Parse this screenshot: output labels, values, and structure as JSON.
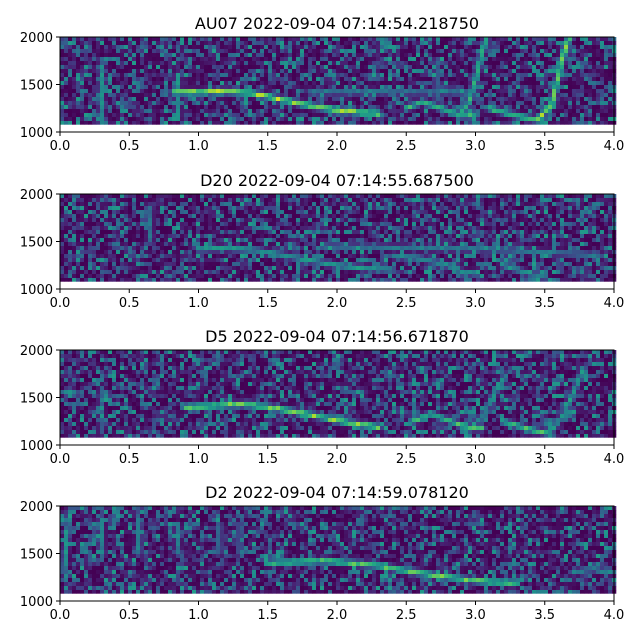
{
  "colors": {
    "background": "#440154",
    "ridge": "#fde725",
    "mid": "#21918c"
  },
  "chart_data": [
    {
      "type": "heatmap",
      "title": "AU07 2022-09-04 07:14:54.218750",
      "xlim": [
        0.0,
        4.0
      ],
      "ylim": [
        1000,
        2000
      ],
      "xticks": [
        "0.0",
        "0.5",
        "1.0",
        "1.5",
        "2.0",
        "2.5",
        "3.0",
        "3.5",
        "4.0"
      ],
      "yticks": [
        "1000",
        "1500",
        "2000"
      ],
      "grid": false,
      "data_band": [
        1080,
        2000
      ],
      "contours": [
        {
          "strength": 0.95,
          "points": [
            [
              0.82,
              1420
            ],
            [
              1.0,
              1420
            ],
            [
              1.2,
              1430
            ],
            [
              1.4,
              1405
            ],
            [
              1.6,
              1340
            ],
            [
              1.8,
              1280
            ],
            [
              2.0,
              1230
            ],
            [
              2.2,
              1200
            ],
            [
              2.3,
              1195
            ]
          ]
        },
        {
          "strength": 0.45,
          "points": [
            [
              1.8,
              1420
            ],
            [
              2.2,
              1420
            ],
            [
              2.5,
              1420
            ],
            [
              2.8,
              1420
            ],
            [
              3.0,
              1410
            ]
          ]
        },
        {
          "strength": 0.75,
          "points": [
            [
              2.5,
              1250
            ],
            [
              2.62,
              1320
            ],
            [
              2.75,
              1250
            ],
            [
              2.9,
              1170
            ],
            [
              3.0,
              1170
            ]
          ]
        },
        {
          "strength": 0.7,
          "points": [
            [
              2.88,
              1160
            ],
            [
              2.95,
              1300
            ],
            [
              3.0,
              1550
            ],
            [
              3.05,
              1850
            ],
            [
              3.08,
              2000
            ]
          ]
        },
        {
          "strength": 0.8,
          "points": [
            [
              3.1,
              1250
            ],
            [
              3.3,
              1170
            ],
            [
              3.5,
              1110
            ]
          ]
        },
        {
          "strength": 0.9,
          "points": [
            [
              3.45,
              1130
            ],
            [
              3.55,
              1300
            ],
            [
              3.6,
              1600
            ],
            [
              3.65,
              1900
            ],
            [
              3.68,
              2000
            ]
          ]
        },
        {
          "strength": 0.55,
          "points": [
            [
              0.3,
              1150
            ],
            [
              0.3,
              1700
            ]
          ]
        },
        {
          "strength": 0.55,
          "points": [
            [
              0.85,
              1150
            ],
            [
              0.85,
              1600
            ]
          ]
        },
        {
          "strength": 0.4,
          "points": [
            [
              2.72,
              1350
            ],
            [
              2.72,
              1750
            ]
          ]
        }
      ]
    },
    {
      "type": "heatmap",
      "title": "D20 2022-09-04 07:14:55.687500",
      "xlim": [
        0.0,
        4.0
      ],
      "ylim": [
        1000,
        2000
      ],
      "xticks": [
        "0.0",
        "0.5",
        "1.0",
        "1.5",
        "2.0",
        "2.5",
        "3.0",
        "3.5",
        "4.0"
      ],
      "yticks": [
        "1000",
        "1500",
        "2000"
      ],
      "grid": false,
      "data_band": [
        1080,
        2000
      ],
      "contours": [
        {
          "strength": 0.6,
          "points": [
            [
              1.0,
              1420
            ],
            [
              1.2,
              1430
            ],
            [
              1.4,
              1410
            ],
            [
              1.6,
              1360
            ],
            [
              1.8,
              1300
            ],
            [
              2.0,
              1250
            ],
            [
              2.2,
              1220
            ],
            [
              2.4,
              1200
            ]
          ]
        },
        {
          "strength": 0.55,
          "points": [
            [
              2.4,
              1350
            ],
            [
              2.6,
              1320
            ],
            [
              2.8,
              1250
            ],
            [
              2.9,
              1180
            ],
            [
              3.0,
              1160
            ]
          ]
        },
        {
          "strength": 0.55,
          "points": [
            [
              3.2,
              1250
            ],
            [
              3.35,
              1180
            ],
            [
              3.5,
              1120
            ]
          ]
        },
        {
          "strength": 0.45,
          "points": [
            [
              1.9,
              1450
            ],
            [
              2.3,
              1440
            ],
            [
              2.7,
              1430
            ],
            [
              3.1,
              1420
            ],
            [
              3.6,
              1380
            ],
            [
              3.9,
              1350
            ]
          ]
        },
        {
          "strength": 0.4,
          "points": [
            [
              0.65,
              1500
            ],
            [
              0.65,
              1850
            ]
          ]
        }
      ]
    },
    {
      "type": "heatmap",
      "title": "D5 2022-09-04 07:14:56.671870",
      "xlim": [
        0.0,
        4.0
      ],
      "ylim": [
        1000,
        2000
      ],
      "xticks": [
        "0.0",
        "0.5",
        "1.0",
        "1.5",
        "2.0",
        "2.5",
        "3.0",
        "3.5",
        "4.0"
      ],
      "yticks": [
        "1000",
        "1500",
        "2000"
      ],
      "grid": false,
      "data_band": [
        1080,
        2000
      ],
      "contours": [
        {
          "strength": 0.9,
          "points": [
            [
              0.9,
              1400
            ],
            [
              1.1,
              1410
            ],
            [
              1.3,
              1430
            ],
            [
              1.5,
              1400
            ],
            [
              1.7,
              1350
            ],
            [
              1.9,
              1290
            ],
            [
              2.1,
              1230
            ],
            [
              2.3,
              1190
            ]
          ]
        },
        {
          "strength": 0.75,
          "points": [
            [
              2.55,
              1250
            ],
            [
              2.68,
              1330
            ],
            [
              2.8,
              1260
            ],
            [
              2.95,
              1180
            ],
            [
              3.05,
              1180
            ]
          ]
        },
        {
          "strength": 0.55,
          "points": [
            [
              2.95,
              1170
            ],
            [
              3.05,
              1300
            ],
            [
              3.12,
              1500
            ],
            [
              3.2,
              1700
            ]
          ]
        },
        {
          "strength": 0.75,
          "points": [
            [
              3.2,
              1250
            ],
            [
              3.4,
              1160
            ],
            [
              3.55,
              1110
            ]
          ]
        },
        {
          "strength": 0.6,
          "points": [
            [
              3.55,
              1150
            ],
            [
              3.65,
              1350
            ],
            [
              3.72,
              1600
            ],
            [
              3.78,
              1800
            ]
          ]
        },
        {
          "strength": 0.35,
          "points": [
            [
              0.3,
              1150
            ],
            [
              0.3,
              1600
            ]
          ]
        }
      ]
    },
    {
      "type": "heatmap",
      "title": "D2 2022-09-04 07:14:59.078120",
      "xlim": [
        0.0,
        4.0
      ],
      "ylim": [
        1000,
        2000
      ],
      "xticks": [
        "0.0",
        "0.5",
        "1.0",
        "1.5",
        "2.0",
        "2.5",
        "3.0",
        "3.5",
        "4.0"
      ],
      "yticks": [
        "1000",
        "1500",
        "2000"
      ],
      "grid": false,
      "data_band": [
        1080,
        2000
      ],
      "contours": [
        {
          "strength": 0.85,
          "points": [
            [
              1.5,
              1400
            ],
            [
              1.7,
              1410
            ],
            [
              1.9,
              1420
            ],
            [
              2.1,
              1400
            ],
            [
              2.3,
              1370
            ],
            [
              2.5,
              1320
            ],
            [
              2.7,
              1270
            ],
            [
              2.9,
              1230
            ],
            [
              3.1,
              1200
            ],
            [
              3.3,
              1190
            ]
          ]
        },
        {
          "strength": 0.5,
          "points": [
            [
              3.7,
              1300
            ],
            [
              3.85,
              1340
            ],
            [
              3.95,
              1300
            ]
          ]
        },
        {
          "strength": 0.55,
          "points": [
            [
              0.03,
              1300
            ],
            [
              0.05,
              1700
            ],
            [
              0.07,
              1950
            ]
          ]
        },
        {
          "strength": 0.5,
          "points": [
            [
              0.3,
              1500
            ],
            [
              0.3,
              1850
            ]
          ]
        },
        {
          "strength": 0.5,
          "points": [
            [
              0.57,
              1500
            ],
            [
              0.57,
              1850
            ]
          ]
        },
        {
          "strength": 0.45,
          "points": [
            [
              0.85,
              1500
            ],
            [
              0.85,
              1800
            ]
          ]
        },
        {
          "strength": 0.4,
          "points": [
            [
              1.15,
              1500
            ],
            [
              1.15,
              1800
            ]
          ]
        },
        {
          "strength": 0.4,
          "points": [
            [
              1.3,
              1500
            ],
            [
              1.3,
              1800
            ]
          ]
        }
      ]
    }
  ]
}
